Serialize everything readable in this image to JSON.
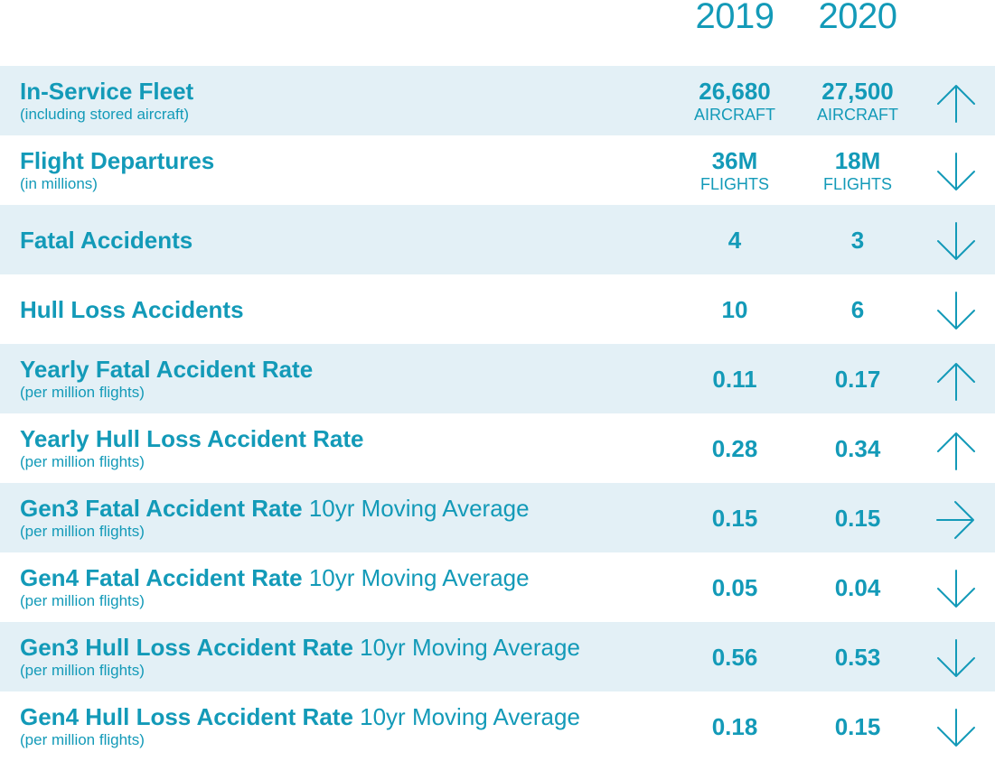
{
  "years": [
    "2019",
    "2020"
  ],
  "accent_color": "#139ab8",
  "shade_color": "#e3f0f6",
  "rows": [
    {
      "title": "In-Service Fleet",
      "suffix": "",
      "subtitle": "(including stored aircraft)",
      "v2019": "26,680",
      "u2019": "AIRCRAFT",
      "v2020": "27,500",
      "u2020": "AIRCRAFT",
      "trend": "arrow-up-icon"
    },
    {
      "title": "Flight Departures",
      "suffix": "",
      "subtitle": "(in millions)",
      "v2019": "36M",
      "u2019": "FLIGHTS",
      "v2020": "18M",
      "u2020": "FLIGHTS",
      "trend": "arrow-down-icon"
    },
    {
      "title": "Fatal Accidents",
      "suffix": "",
      "subtitle": "",
      "v2019": "4",
      "u2019": "",
      "v2020": "3",
      "u2020": "",
      "trend": "arrow-down-icon"
    },
    {
      "title": "Hull Loss Accidents",
      "suffix": "",
      "subtitle": "",
      "v2019": "10",
      "u2019": "",
      "v2020": "6",
      "u2020": "",
      "trend": "arrow-down-icon"
    },
    {
      "title": "Yearly Fatal Accident Rate",
      "suffix": "",
      "subtitle": "(per million flights)",
      "v2019": "0.11",
      "u2019": "",
      "v2020": "0.17",
      "u2020": "",
      "trend": "arrow-up-icon"
    },
    {
      "title": "Yearly Hull Loss Accident Rate",
      "suffix": "",
      "subtitle": "(per million flights)",
      "v2019": "0.28",
      "u2019": "",
      "v2020": "0.34",
      "u2020": "",
      "trend": "arrow-up-icon"
    },
    {
      "title": "Gen3 Fatal Accident Rate",
      "suffix": "10yr Moving Average",
      "subtitle": "(per million flights)",
      "v2019": "0.15",
      "u2019": "",
      "v2020": "0.15",
      "u2020": "",
      "trend": "arrow-right-icon"
    },
    {
      "title": "Gen4 Fatal Accident Rate",
      "suffix": "10yr Moving Average",
      "subtitle": "(per million flights)",
      "v2019": "0.05",
      "u2019": "",
      "v2020": "0.04",
      "u2020": "",
      "trend": "arrow-down-icon"
    },
    {
      "title": "Gen3 Hull Loss Accident Rate",
      "suffix": "10yr Moving Average",
      "subtitle": "(per million flights)",
      "v2019": "0.56",
      "u2019": "",
      "v2020": "0.53",
      "u2020": "",
      "trend": "arrow-down-icon"
    },
    {
      "title": "Gen4 Hull Loss Accident Rate",
      "suffix": "10yr Moving Average",
      "subtitle": "(per million flights)",
      "v2019": "0.18",
      "u2019": "",
      "v2020": "0.15",
      "u2020": "",
      "trend": "arrow-down-icon"
    }
  ]
}
